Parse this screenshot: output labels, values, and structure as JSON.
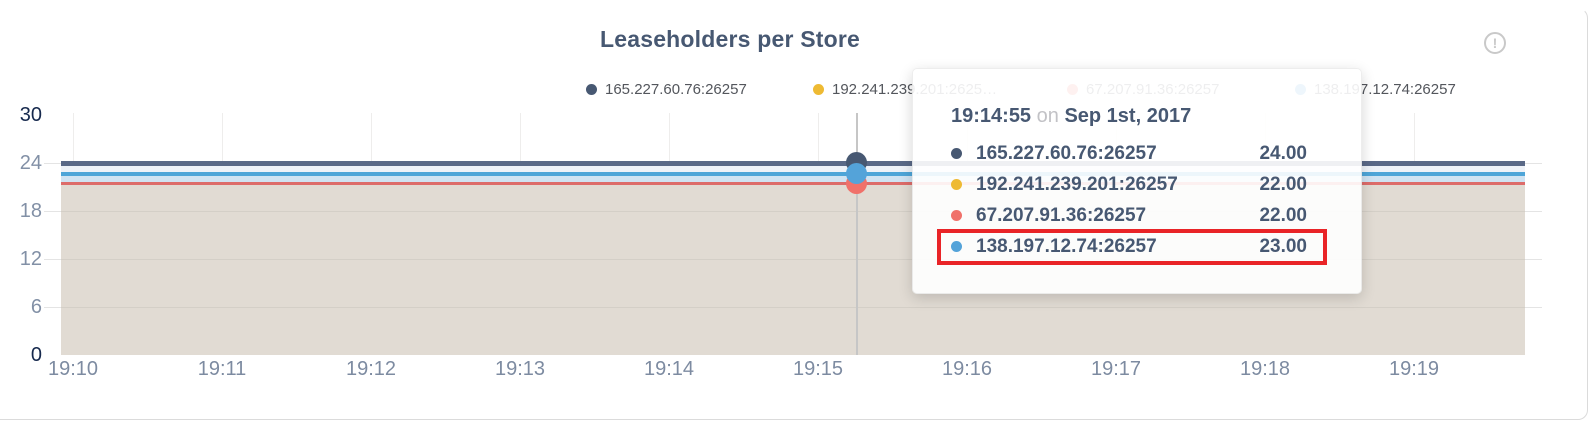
{
  "title": "Leaseholders per Store",
  "info_icon": {
    "glyph": "!"
  },
  "colors": {
    "series_navy": "#5a6987",
    "series_yellow": "#eeba33",
    "series_red": "#dd6c6a",
    "series_blue": "#4ea5d8",
    "dot_navy": "#475872",
    "dot_yellow": "#eeba33",
    "dot_red": "#f0716a",
    "dot_blue": "#54a3d9",
    "fill_beige": "#e1dbd3",
    "band_navy_blue": "#eef2f8",
    "band_blue_red": "#d0e3f2",
    "highlight_red": "#e92427",
    "title_text": "#475872"
  },
  "legend": {
    "items": [
      {
        "label": "165.227.60.76:26257",
        "color": "#475872"
      },
      {
        "label": "192.241.239.201:2625…",
        "color": "#eeba33"
      },
      {
        "label": "67.207.91.36:26257",
        "color": "#f0716a"
      },
      {
        "label": "138.197.12.74:26257",
        "color": "#54a3d9"
      }
    ]
  },
  "tooltip": {
    "time": "19:14:55",
    "on_word": "on",
    "date": "Sep 1st, 2017",
    "rows": [
      {
        "name": "165.227.60.76:26257",
        "value": "24.00",
        "color": "#475872",
        "highlighted": false
      },
      {
        "name": "192.241.239.201:26257",
        "value": "22.00",
        "color": "#eeba33",
        "highlighted": false
      },
      {
        "name": "67.207.91.36:26257",
        "value": "22.00",
        "color": "#f0716a",
        "highlighted": false
      },
      {
        "name": "138.197.12.74:26257",
        "value": "23.00",
        "color": "#54a3d9",
        "highlighted": true
      }
    ]
  },
  "chart_data": {
    "type": "area",
    "title": "Leaseholders per Store",
    "x_ticks": [
      "19:10",
      "19:11",
      "19:12",
      "19:13",
      "19:14",
      "19:15",
      "19:16",
      "19:17",
      "19:18",
      "19:19"
    ],
    "y_ticks": [
      30,
      24,
      18,
      12,
      6,
      0
    ],
    "ylim": [
      0,
      30
    ],
    "grid": true,
    "legend_position": "top",
    "series": [
      {
        "name": "165.227.60.76:26257",
        "color": "#475872",
        "values_constant": 24
      },
      {
        "name": "192.241.239.201:26257",
        "color": "#eeba33",
        "values_constant": 22
      },
      {
        "name": "67.207.91.36:26257",
        "color": "#f0716a",
        "values_constant": 22
      },
      {
        "name": "138.197.12.74:26257",
        "color": "#54a3d9",
        "values_constant": 23
      }
    ],
    "hover_point": {
      "time": "19:14:55",
      "date": "Sep 1st, 2017",
      "values": {
        "165.227.60.76:26257": 24,
        "192.241.239.201:26257": 22,
        "67.207.91.36:26257": 22,
        "138.197.12.74:26257": 23
      },
      "highlighted_series": "138.197.12.74:26257"
    }
  }
}
